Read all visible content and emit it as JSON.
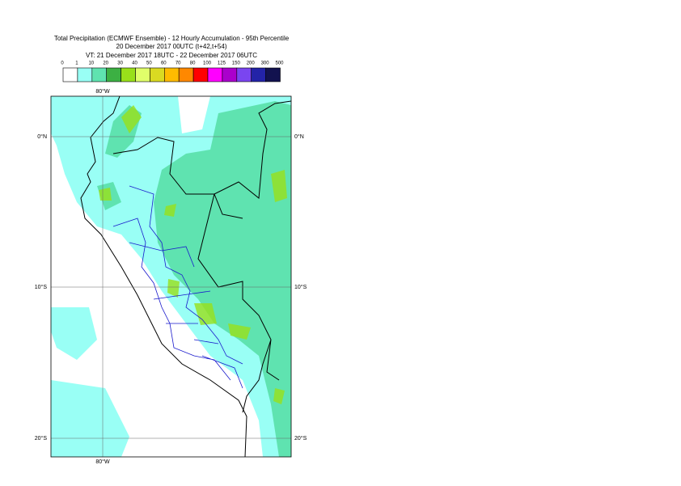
{
  "header": {
    "title_lines": [
      "Total Precipitation (ECMWF Ensemble) - 12 Hourly Accumulation - 95th Percentile",
      "20 December 2017 00UTC (t+42,t+54)",
      "VT: 21 December 2017 18UTC - 22 December 2017 06UTC"
    ]
  },
  "legend": {
    "thresholds": [
      0,
      1,
      10,
      20,
      30,
      40,
      50,
      60,
      70,
      80,
      100,
      125,
      150,
      200,
      300,
      500
    ],
    "colors": [
      "#ffffff",
      "#99fff5",
      "#5fe3b0",
      "#3cb043",
      "#99e01a",
      "#e0ff6a",
      "#dada22",
      "#ffbb00",
      "#ff8800",
      "#ff0000",
      "#ff00ff",
      "#aa00cc",
      "#7a45f0",
      "#2323a8",
      "#12124f"
    ]
  },
  "map": {
    "longitude_labels": [
      "80°W"
    ],
    "latitude_labels": [
      "0°N",
      "10°S",
      "20°S"
    ]
  }
}
